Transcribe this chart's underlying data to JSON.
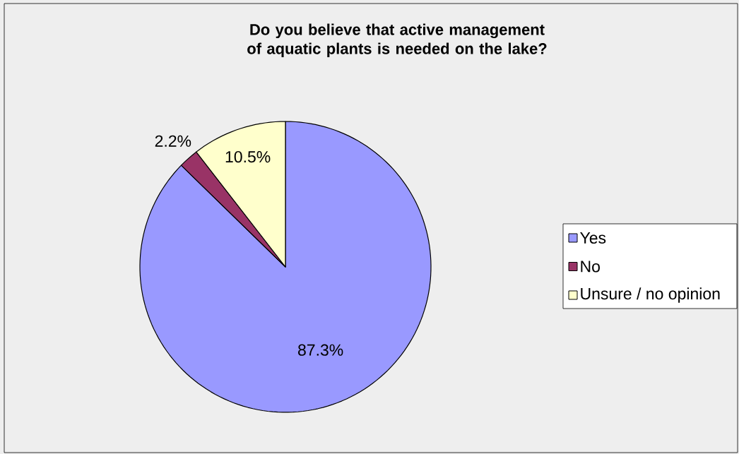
{
  "chart_data": {
    "type": "pie",
    "title": "Do you believe that active management of aquatic plants is needed on the lake?",
    "categories": [
      "Yes",
      "No",
      "Unsure / no opinion"
    ],
    "values": [
      87.3,
      2.2,
      10.5
    ],
    "colors": [
      "#9999ff",
      "#993366",
      "#ffffcc"
    ],
    "value_labels": [
      "87.3%",
      "2.2%",
      "10.5%"
    ],
    "legend": "right"
  }
}
